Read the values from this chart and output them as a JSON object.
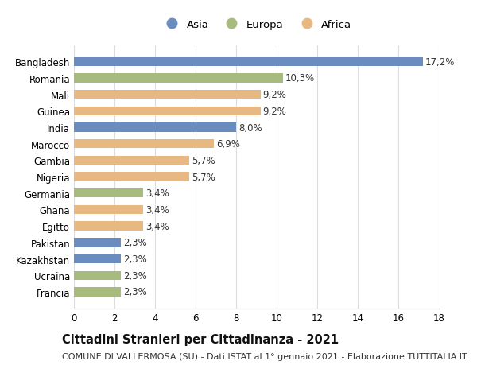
{
  "categories": [
    "Francia",
    "Ucraina",
    "Kazakhstan",
    "Pakistan",
    "Egitto",
    "Ghana",
    "Germania",
    "Nigeria",
    "Gambia",
    "Marocco",
    "India",
    "Guinea",
    "Mali",
    "Romania",
    "Bangladesh"
  ],
  "values": [
    2.3,
    2.3,
    2.3,
    2.3,
    3.4,
    3.4,
    3.4,
    5.7,
    5.7,
    6.9,
    8.0,
    9.2,
    9.2,
    10.3,
    17.2
  ],
  "continents": [
    "Europa",
    "Europa",
    "Asia",
    "Asia",
    "Africa",
    "Africa",
    "Europa",
    "Africa",
    "Africa",
    "Africa",
    "Asia",
    "Africa",
    "Africa",
    "Europa",
    "Asia"
  ],
  "colors": {
    "Asia": "#6b8cbf",
    "Europa": "#a8bb7e",
    "Africa": "#e8b882"
  },
  "label_values": [
    "2,3%",
    "2,3%",
    "2,3%",
    "2,3%",
    "3,4%",
    "3,4%",
    "3,4%",
    "5,7%",
    "5,7%",
    "6,9%",
    "8,0%",
    "9,2%",
    "9,2%",
    "10,3%",
    "17,2%"
  ],
  "xlim": [
    0,
    18
  ],
  "xticks": [
    0,
    2,
    4,
    6,
    8,
    10,
    12,
    14,
    16,
    18
  ],
  "title": "Cittadini Stranieri per Cittadinanza - 2021",
  "subtitle": "COMUNE DI VALLERMOSA (SU) - Dati ISTAT al 1° gennaio 2021 - Elaborazione TUTTITALIA.IT",
  "legend_labels": [
    "Asia",
    "Europa",
    "Africa"
  ],
  "legend_colors": [
    "#6b8cbf",
    "#a8bb7e",
    "#e8b882"
  ],
  "bg_color": "#ffffff",
  "grid_color": "#dddddd",
  "bar_height": 0.55,
  "title_fontsize": 10.5,
  "subtitle_fontsize": 8,
  "tick_fontsize": 8.5,
  "label_fontsize": 8.5
}
